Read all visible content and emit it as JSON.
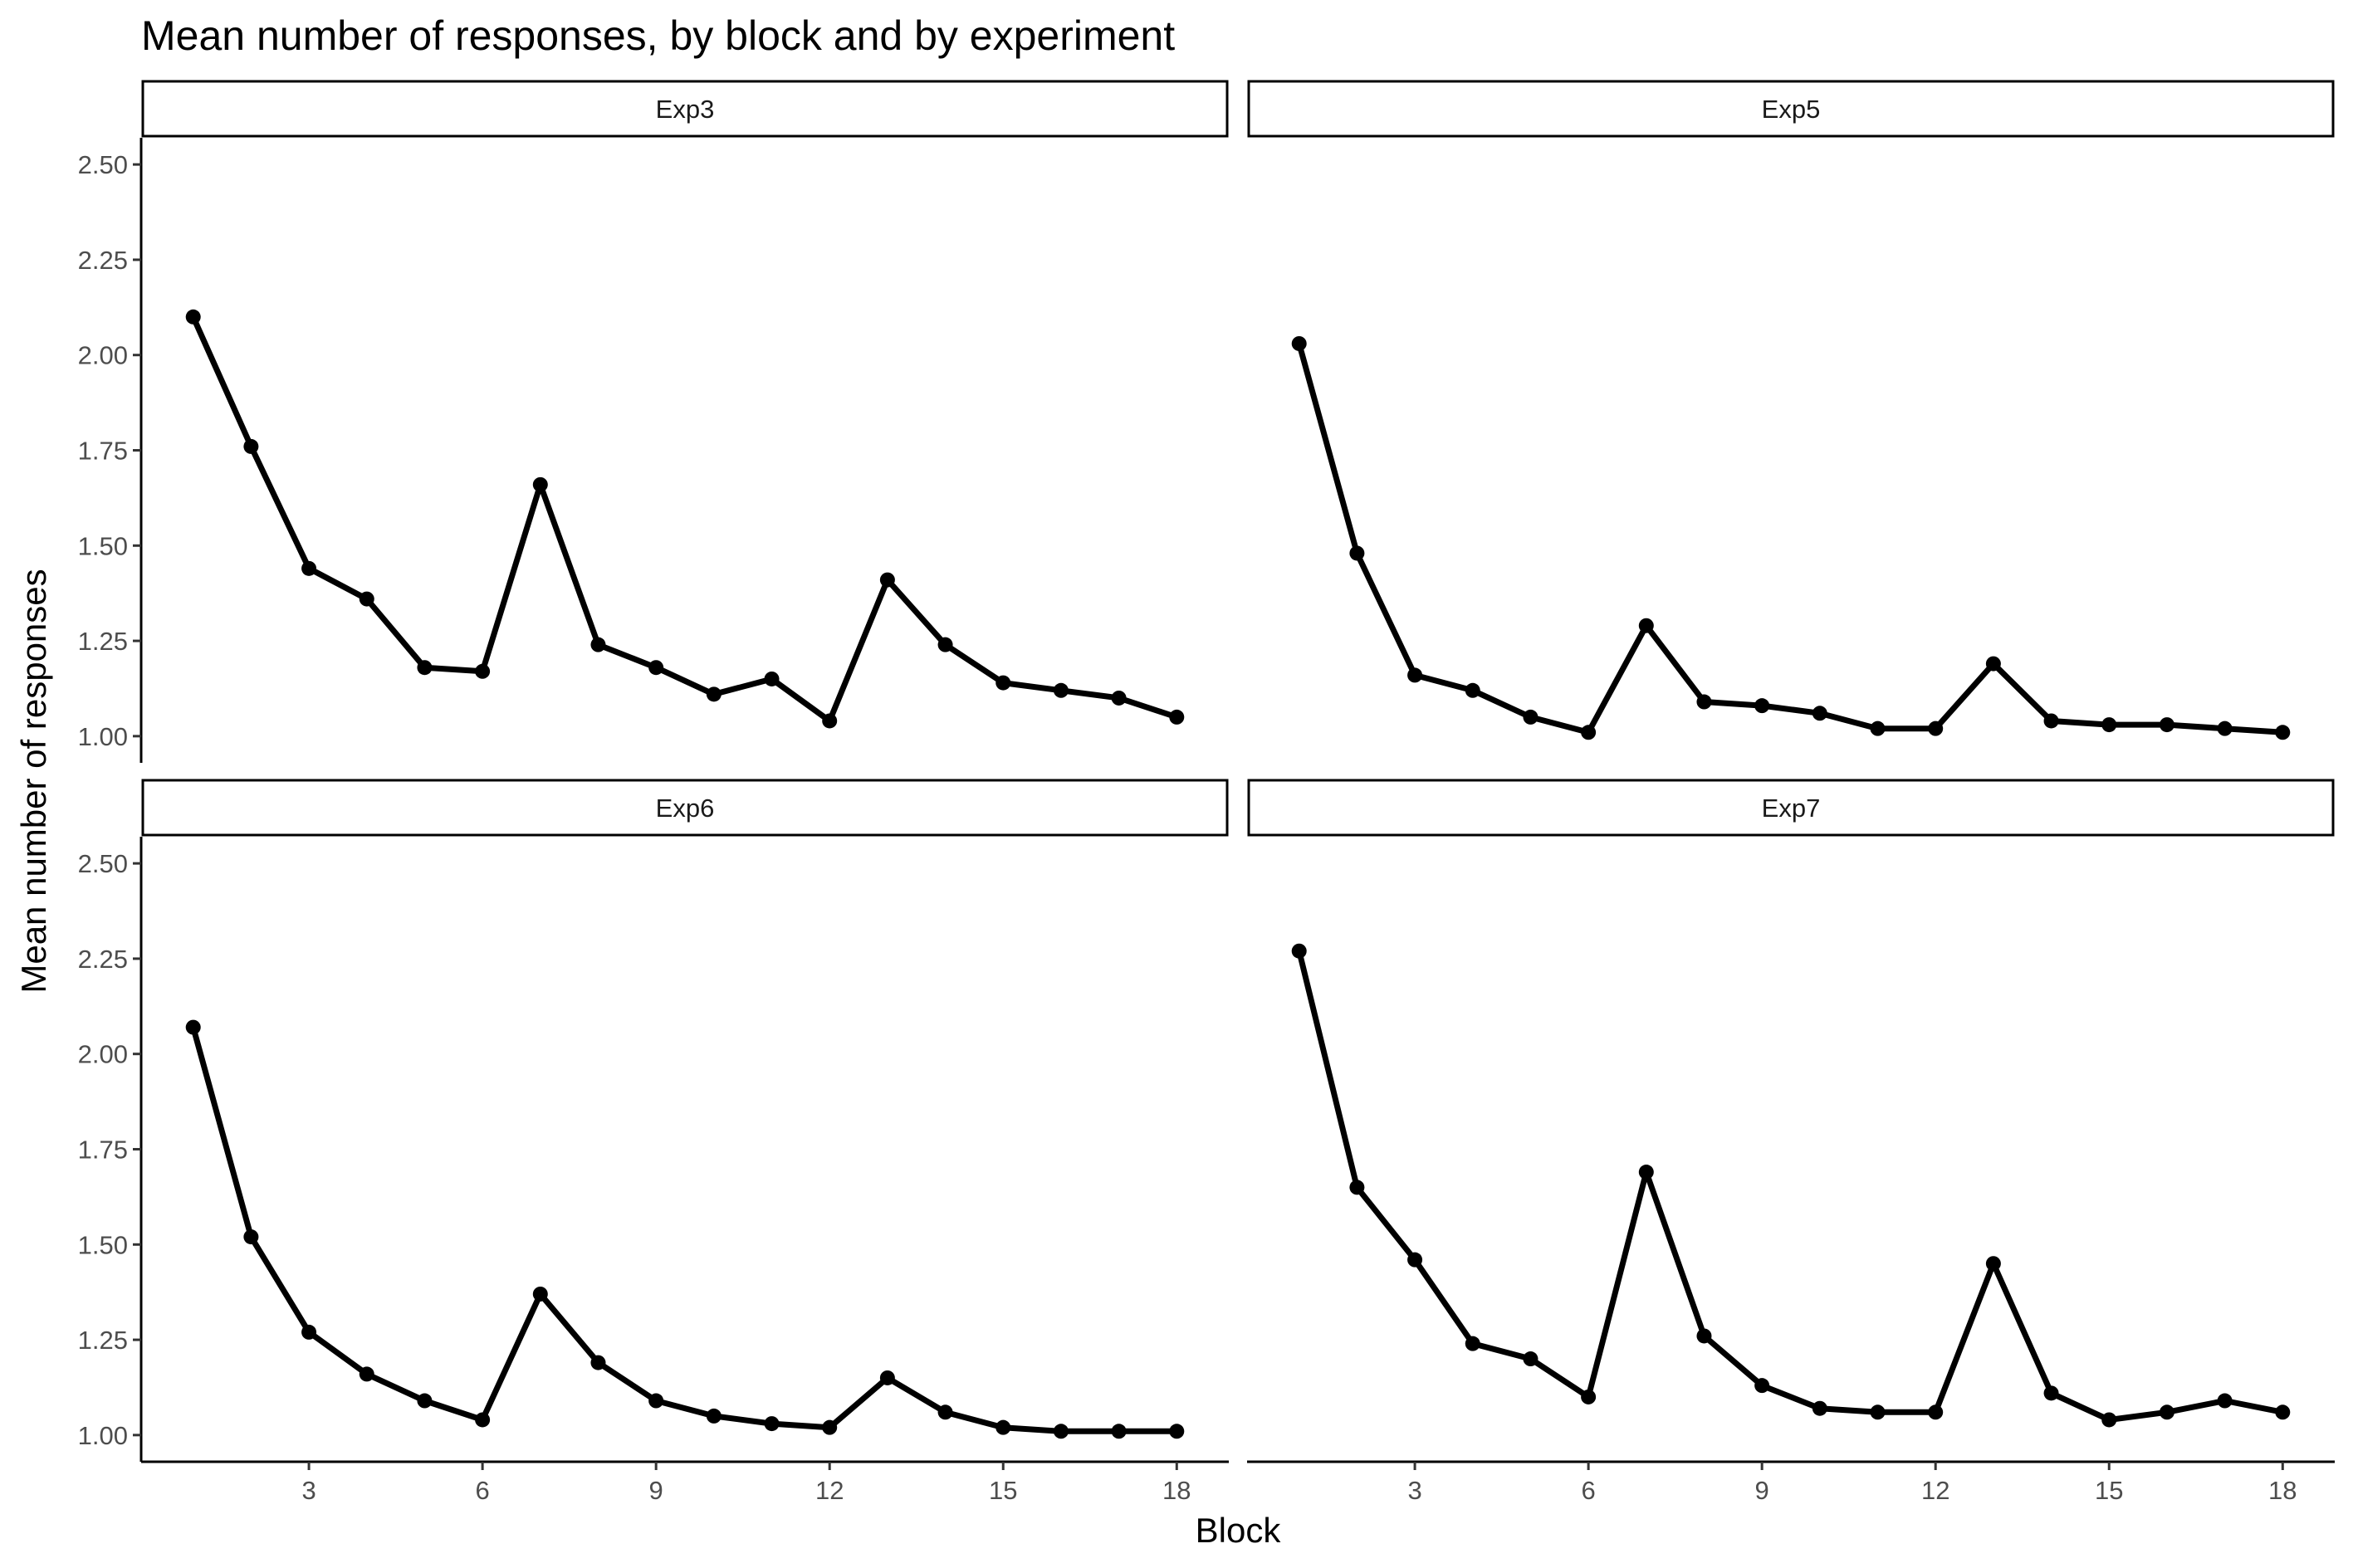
{
  "chart_data": {
    "type": "line",
    "title": "Mean number of responses, by block and by experiment",
    "xlabel": "Block",
    "ylabel": "Mean number of responses",
    "x_ticks": [
      3,
      6,
      9,
      12,
      15,
      18
    ],
    "y_ticks": [
      "1.00",
      "1.25",
      "1.50",
      "1.75",
      "2.00",
      "2.25",
      "2.50"
    ],
    "xlim": [
      0.1,
      18.9
    ],
    "ylim": [
      0.93,
      2.57
    ],
    "grid": false,
    "legend": "none",
    "line_color": "#000000",
    "x": [
      1,
      2,
      3,
      4,
      5,
      6,
      7,
      8,
      9,
      10,
      11,
      12,
      13,
      14,
      15,
      16,
      17,
      18
    ],
    "panels": [
      {
        "name": "Exp3",
        "values": [
          2.1,
          1.76,
          1.44,
          1.36,
          1.18,
          1.17,
          1.66,
          1.24,
          1.18,
          1.11,
          1.15,
          1.04,
          1.41,
          1.24,
          1.14,
          1.12,
          1.1,
          1.05
        ]
      },
      {
        "name": "Exp5",
        "values": [
          2.03,
          1.48,
          1.16,
          1.12,
          1.05,
          1.01,
          1.29,
          1.09,
          1.08,
          1.06,
          1.02,
          1.02,
          1.19,
          1.04,
          1.03,
          1.03,
          1.02,
          1.01
        ]
      },
      {
        "name": "Exp6",
        "values": [
          2.07,
          1.52,
          1.27,
          1.16,
          1.09,
          1.04,
          1.37,
          1.19,
          1.09,
          1.05,
          1.03,
          1.02,
          1.15,
          1.06,
          1.02,
          1.01,
          1.01,
          1.01
        ]
      },
      {
        "name": "Exp7",
        "values": [
          2.27,
          1.65,
          1.46,
          1.24,
          1.2,
          1.1,
          1.69,
          1.26,
          1.13,
          1.07,
          1.06,
          1.06,
          1.45,
          1.11,
          1.04,
          1.06,
          1.09,
          1.06
        ]
      }
    ]
  }
}
